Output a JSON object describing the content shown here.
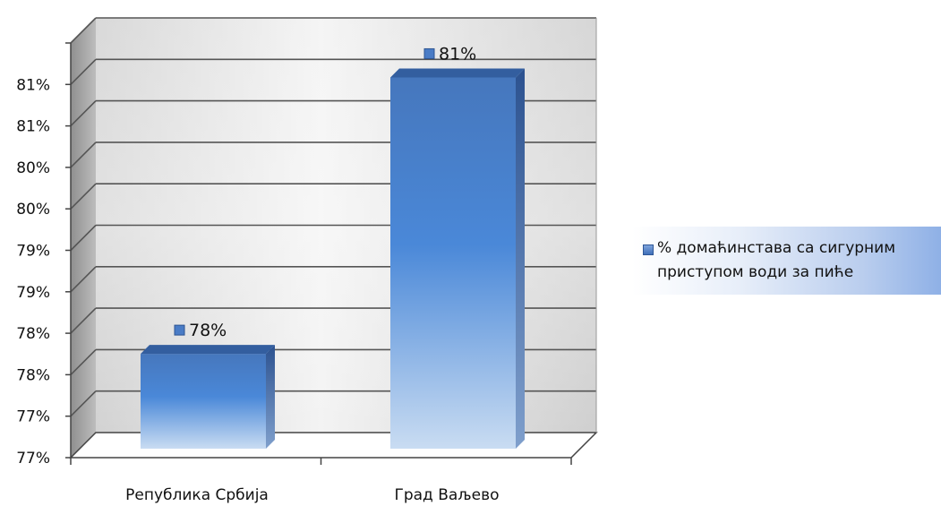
{
  "chart_data": {
    "type": "bar",
    "title": "",
    "xlabel": "",
    "ylabel": "",
    "categories": [
      "Република Србија",
      "Град Ваљево"
    ],
    "series": [
      {
        "name": "% домаћинстава са сигурним приступом води за пиће",
        "values": [
          78,
          81
        ],
        "labels": [
          "78%",
          "81%"
        ]
      }
    ],
    "y_ticks": [
      "77%",
      "77%",
      "78%",
      "78%",
      "79%",
      "79%",
      "80%",
      "80%",
      "81%",
      "81%"
    ],
    "ylim": [
      77,
      81.5
    ],
    "grid": true,
    "legend_position": "right",
    "style": "3d-column",
    "colors": {
      "bar_top": "#3d6fb6",
      "bar_mid": "#4a86d6",
      "bar_bottom": "#c6d9f1",
      "bar_side": "#2e5592",
      "bar_cap": "#335e9f",
      "grid": "#555555",
      "wall_light": "#f2f2f2",
      "wall_dark": "#c8c8c8"
    }
  }
}
